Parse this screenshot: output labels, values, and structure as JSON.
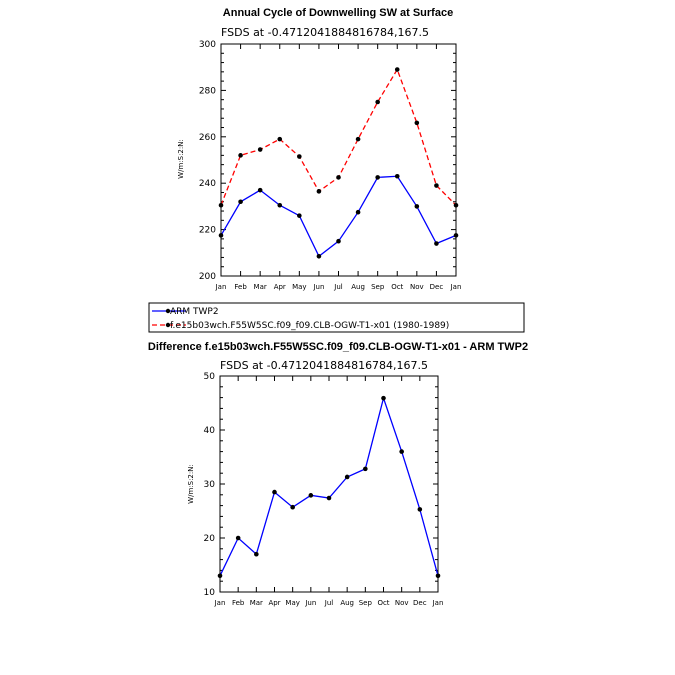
{
  "chart_data": [
    {
      "type": "line",
      "title": "Annual Cycle of Downwelling SW at Surface",
      "subtitle": "FSDS at -0.4712041884816784,167.5",
      "ylabel": "W/m:S:2:N:",
      "ylim": [
        200,
        300
      ],
      "yticks": [
        200,
        220,
        240,
        260,
        280,
        300
      ],
      "categories": [
        "Jan",
        "Feb",
        "Mar",
        "Apr",
        "May",
        "Jun",
        "Jul",
        "Aug",
        "Sep",
        "Oct",
        "Nov",
        "Dec",
        "Jan"
      ],
      "series": [
        {
          "name": "ARM TWP2",
          "color": "#0000ff",
          "dash": "solid",
          "values": [
            217.5,
            232,
            237,
            230.5,
            226,
            208.5,
            215,
            227.5,
            242.5,
            243,
            230,
            214,
            217.5
          ]
        },
        {
          "name": "f.e15b03wch.F55W5SC.f09_f09.CLB-OGW-T1-x01 (1980-1989)",
          "color": "#ff0000",
          "dash": "dashed",
          "values": [
            230.5,
            252,
            254.5,
            259,
            251.5,
            236.5,
            242.5,
            259,
            275,
            289,
            266,
            239,
            230.5
          ]
        }
      ],
      "legend": "below"
    },
    {
      "type": "line",
      "title": "Difference f.e15b03wch.F55W5SC.f09_f09.CLB-OGW-T1-x01 - ARM TWP2",
      "subtitle": "FSDS at -0.4712041884816784,167.5",
      "ylabel": "W/m:S:2:N:",
      "ylim": [
        10,
        50
      ],
      "yticks": [
        10,
        20,
        30,
        40,
        50
      ],
      "categories": [
        "Jan",
        "Feb",
        "Mar",
        "Apr",
        "May",
        "Jun",
        "Jul",
        "Aug",
        "Sep",
        "Oct",
        "Nov",
        "Dec",
        "Jan"
      ],
      "series": [
        {
          "color": "#0000ff",
          "dash": "solid",
          "values": [
            13,
            20,
            17,
            28.5,
            25.7,
            27.9,
            27.4,
            31.3,
            32.8,
            45.9,
            36,
            25.3,
            13
          ]
        }
      ]
    }
  ]
}
